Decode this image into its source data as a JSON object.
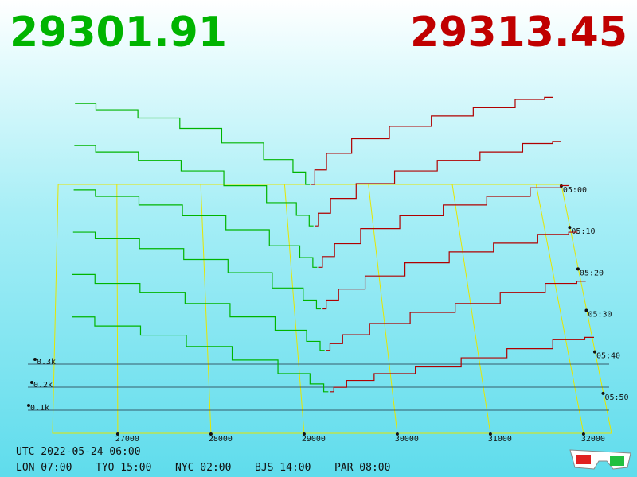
{
  "chart_data": {
    "type": "depth3d",
    "bid_price": 29301.91,
    "ask_price": 29313.45,
    "bid_color": "#00b400",
    "ask_color": "#b00000",
    "price_color": {
      "bid": "#00b400",
      "ask": "#c00000"
    },
    "xlim": [
      26300,
      32300
    ],
    "xticks": [
      27000,
      28000,
      29000,
      30000,
      31000,
      32000
    ],
    "yticks": [
      {
        "value": 100,
        "label": "0.1k"
      },
      {
        "value": 200,
        "label": "0.2k"
      },
      {
        "value": 300,
        "label": "0.3k"
      }
    ],
    "times": [
      "05:00",
      "05:10",
      "05:20",
      "05:30",
      "05:40",
      "05:50"
    ],
    "bid_levels": [
      29300,
      29200,
      29000,
      28500,
      28000,
      27500,
      27000,
      26500
    ],
    "ask_levels": [
      29320,
      29400,
      29600,
      30000,
      30500,
      31000,
      31500,
      32000,
      32200
    ],
    "bids": [
      [
        0,
        60,
        120,
        200,
        270,
        320,
        360,
        390
      ],
      [
        0,
        50,
        110,
        190,
        260,
        310,
        350,
        380
      ],
      [
        0,
        45,
        100,
        175,
        240,
        290,
        330,
        360
      ],
      [
        0,
        40,
        95,
        165,
        225,
        275,
        320,
        350
      ],
      [
        0,
        40,
        90,
        150,
        210,
        260,
        300,
        340
      ],
      [
        0,
        35,
        80,
        140,
        200,
        250,
        290,
        330
      ]
    ],
    "asks": [
      [
        0,
        70,
        150,
        220,
        280,
        330,
        370,
        410,
        420
      ],
      [
        0,
        60,
        130,
        200,
        260,
        310,
        350,
        390,
        400
      ],
      [
        0,
        50,
        110,
        180,
        240,
        290,
        330,
        370,
        380
      ],
      [
        0,
        40,
        90,
        150,
        210,
        260,
        300,
        340,
        350
      ],
      [
        0,
        30,
        70,
        120,
        170,
        210,
        260,
        300,
        310
      ],
      [
        0,
        20,
        50,
        80,
        110,
        150,
        190,
        230,
        240
      ]
    ],
    "footer": {
      "utc": "UTC 2022-05-24 06:00",
      "clocks": [
        "LON 07:00",
        "TYO 15:00",
        "NYC 02:00",
        "BJS 14:00",
        "PAR 08:00"
      ]
    }
  }
}
